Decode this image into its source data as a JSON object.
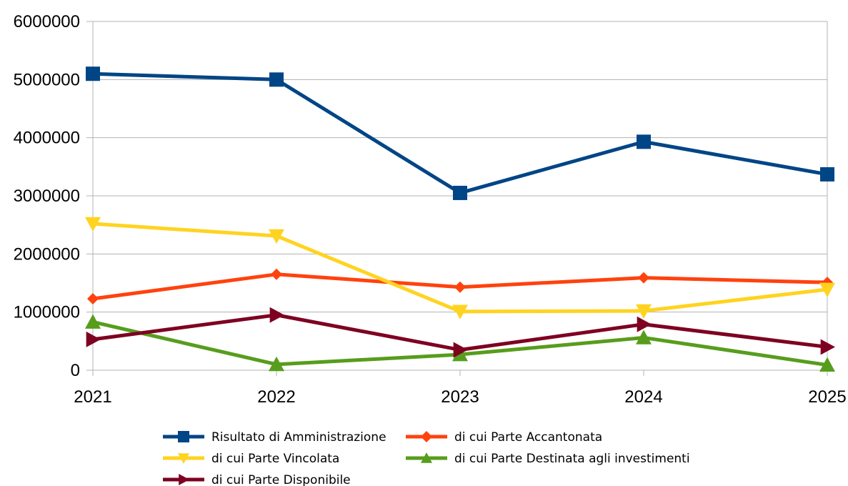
{
  "chart_data": {
    "type": "line",
    "title": "",
    "xlabel": "",
    "ylabel": "",
    "categories": [
      "2021",
      "2022",
      "2023",
      "2024",
      "2025"
    ],
    "ylim": [
      0,
      6000000
    ],
    "yticks": [
      0,
      1000000,
      2000000,
      3000000,
      4000000,
      5000000,
      6000000
    ],
    "grid": true,
    "legend_position": "bottom",
    "series": [
      {
        "name": "Risultato di Amministrazione",
        "color": "#004586",
        "marker": "square",
        "values": [
          5100000,
          5000000,
          3050000,
          3930000,
          3370000
        ]
      },
      {
        "name": "di cui Parte Accantonata",
        "color": "#ff420e",
        "marker": "diamond",
        "values": [
          1230000,
          1650000,
          1430000,
          1590000,
          1510000
        ]
      },
      {
        "name": "di cui Parte Vincolata",
        "color": "#ffd320",
        "marker": "triangle-down",
        "values": [
          2520000,
          2310000,
          1010000,
          1020000,
          1390000
        ]
      },
      {
        "name": "di cui Parte Destinata agli investimenti",
        "color": "#579d1c",
        "marker": "triangle-up",
        "values": [
          830000,
          100000,
          270000,
          560000,
          90000
        ]
      },
      {
        "name": "di cui Parte Disponibile",
        "color": "#7e0021",
        "marker": "triangle-right",
        "values": [
          530000,
          950000,
          350000,
          790000,
          400000
        ]
      }
    ]
  }
}
